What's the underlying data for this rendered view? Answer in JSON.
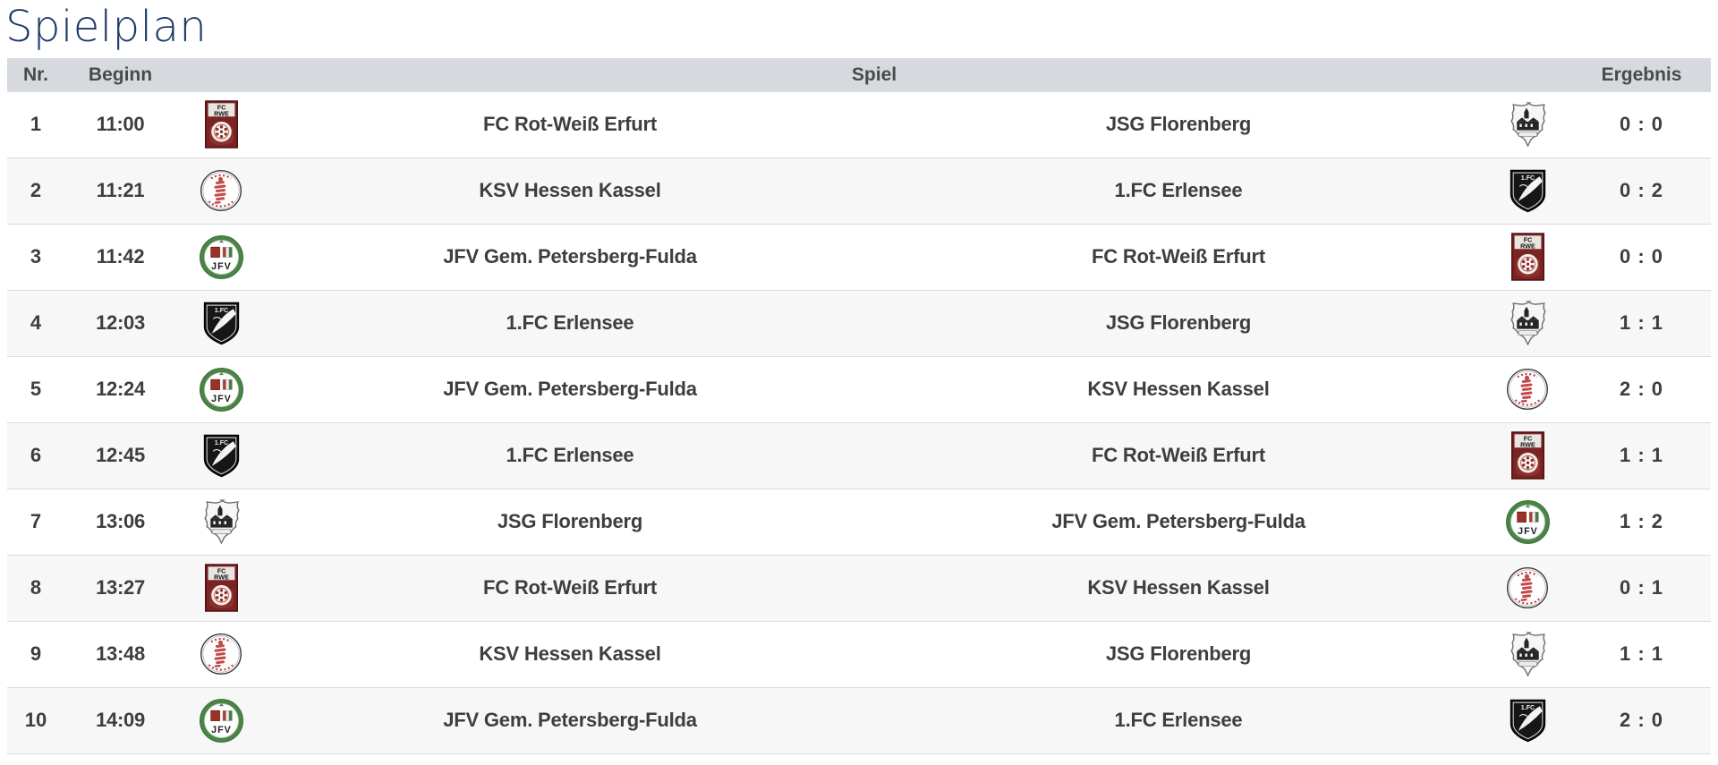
{
  "page": {
    "title": "Spielplan"
  },
  "table": {
    "headers": {
      "nr": "Nr.",
      "beginn": "Beginn",
      "spiel": "Spiel",
      "ergebnis": "Ergebnis"
    },
    "rows": [
      {
        "nr": "1",
        "time": "11:00",
        "home": "FC Rot-Weiß Erfurt",
        "away": "JSG Florenberg",
        "score": "0 : 0",
        "home_logo": "rwe",
        "away_logo": "florenberg"
      },
      {
        "nr": "2",
        "time": "11:21",
        "home": "KSV Hessen Kassel",
        "away": "1.FC Erlensee",
        "score": "0 : 2",
        "home_logo": "kassel",
        "away_logo": "erlensee"
      },
      {
        "nr": "3",
        "time": "11:42",
        "home": "JFV Gem. Petersberg-Fulda",
        "away": "FC Rot-Weiß Erfurt",
        "score": "0 : 0",
        "home_logo": "jfv",
        "away_logo": "rwe"
      },
      {
        "nr": "4",
        "time": "12:03",
        "home": "1.FC Erlensee",
        "away": "JSG Florenberg",
        "score": "1 : 1",
        "home_logo": "erlensee",
        "away_logo": "florenberg"
      },
      {
        "nr": "5",
        "time": "12:24",
        "home": "JFV Gem. Petersberg-Fulda",
        "away": "KSV Hessen Kassel",
        "score": "2 : 0",
        "home_logo": "jfv",
        "away_logo": "kassel"
      },
      {
        "nr": "6",
        "time": "12:45",
        "home": "1.FC Erlensee",
        "away": "FC Rot-Weiß Erfurt",
        "score": "1 : 1",
        "home_logo": "erlensee",
        "away_logo": "rwe"
      },
      {
        "nr": "7",
        "time": "13:06",
        "home": "JSG Florenberg",
        "away": "JFV Gem. Petersberg-Fulda",
        "score": "1 : 2",
        "home_logo": "florenberg",
        "away_logo": "jfv"
      },
      {
        "nr": "8",
        "time": "13:27",
        "home": "FC Rot-Weiß Erfurt",
        "away": "KSV Hessen Kassel",
        "score": "0 : 1",
        "home_logo": "rwe",
        "away_logo": "kassel"
      },
      {
        "nr": "9",
        "time": "13:48",
        "home": "KSV Hessen Kassel",
        "away": "JSG Florenberg",
        "score": "1 : 1",
        "home_logo": "kassel",
        "away_logo": "florenberg"
      },
      {
        "nr": "10",
        "time": "14:09",
        "home": "JFV Gem. Petersberg-Fulda",
        "away": "1.FC Erlensee",
        "score": "2 : 0",
        "home_logo": "jfv",
        "away_logo": "erlensee"
      }
    ]
  },
  "logos": {
    "rwe": {
      "name": "FC Rot-Weiß Erfurt",
      "line1": "FC",
      "line2": "RWE"
    },
    "kassel": {
      "name": "KSV Hessen Kassel"
    },
    "jfv": {
      "name": "JFV Gem. Petersberg-Fulda",
      "label": "JFV"
    },
    "florenberg": {
      "name": "JSG Florenberg"
    },
    "erlensee": {
      "name": "1.FC Erlensee",
      "label": "1.FC"
    }
  },
  "colors": {
    "title": "#1d3a66",
    "header_bg": "#d6dade",
    "header_text": "#494949",
    "row_text": "#3e3e3e",
    "row_alt_bg": "#f7f7f8",
    "row_border": "#dcdcdc"
  }
}
